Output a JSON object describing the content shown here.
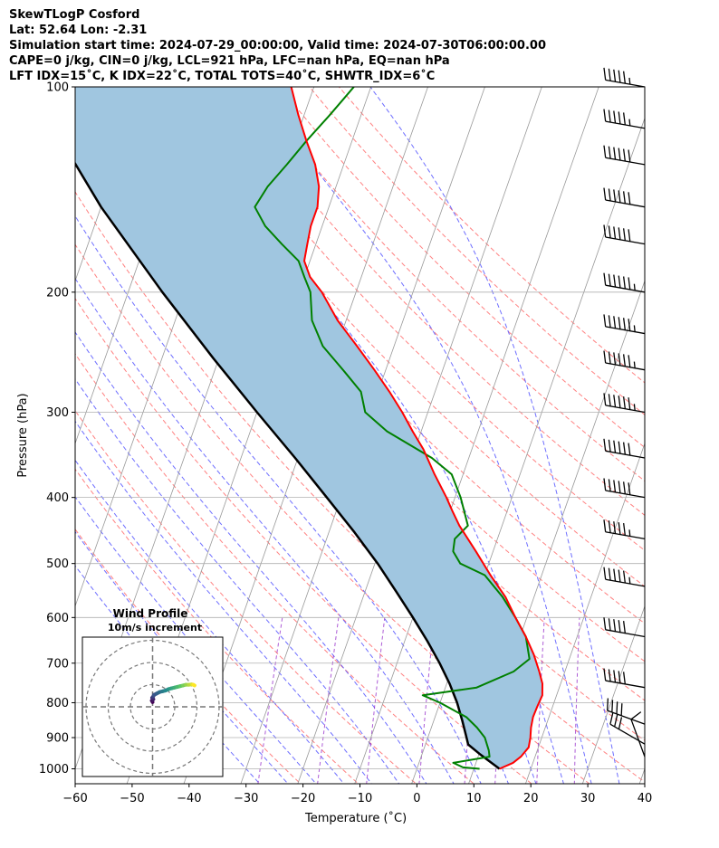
{
  "header": {
    "line1": "SkewTLogP Cosford",
    "line2": "Lat: 52.64   Lon: -2.31",
    "line3": "Simulation start time: 2024-07-29_00:00:00, Valid time: 2024-07-30T06:00:00.00",
    "line4": "CAPE=0 j/kg, CIN=0 j/kg, LCL=921 hPa, LFC=nan hPa, EQ=nan hPa",
    "line5": "LFT IDX=15˚C, K IDX=22˚C, TOTAL TOTS=40˚C, SHWTR_IDX=6˚C"
  },
  "chart_data": {
    "type": "line",
    "subtype": "skew-t log-p",
    "xlabel": "Temperature (˚C)",
    "ylabel": "Pressure (hPa)",
    "xlim": [
      -60,
      40
    ],
    "ylim": [
      1050,
      100
    ],
    "yscale": "log",
    "grid": true,
    "x_ticks": [
      "−60",
      "−50",
      "−40",
      "−30",
      "−20",
      "−10",
      "0",
      "10",
      "20",
      "30",
      "40"
    ],
    "y_ticks": [
      "100",
      "200",
      "300",
      "400",
      "500",
      "600",
      "700",
      "800",
      "900",
      "1000"
    ],
    "series": [
      {
        "role": "temperature",
        "color": "#ff0000",
        "points": [
          [
            1000,
            14.5
          ],
          [
            980,
            16.5
          ],
          [
            960,
            17.5
          ],
          [
            930,
            18.3
          ],
          [
            900,
            18
          ],
          [
            870,
            17.5
          ],
          [
            840,
            17.2
          ],
          [
            810,
            17.3
          ],
          [
            780,
            17.5
          ],
          [
            750,
            16.8
          ],
          [
            720,
            15.5
          ],
          [
            680,
            13.5
          ],
          [
            640,
            11
          ],
          [
            600,
            8
          ],
          [
            560,
            5
          ],
          [
            520,
            1
          ],
          [
            480,
            -3
          ],
          [
            440,
            -7.5
          ],
          [
            420,
            -9.5
          ],
          [
            400,
            -11.5
          ],
          [
            370,
            -15
          ],
          [
            340,
            -18.5
          ],
          [
            320,
            -21.5
          ],
          [
            300,
            -24.5
          ],
          [
            280,
            -28
          ],
          [
            260,
            -32
          ],
          [
            240,
            -36.5
          ],
          [
            220,
            -41.5
          ],
          [
            200,
            -46
          ],
          [
            190,
            -49
          ],
          [
            180,
            -51
          ],
          [
            170,
            -51.5
          ],
          [
            160,
            -52
          ],
          [
            150,
            -52
          ],
          [
            140,
            -53
          ],
          [
            130,
            -55
          ],
          [
            120,
            -58
          ],
          [
            110,
            -61
          ],
          [
            100,
            -64
          ]
        ]
      },
      {
        "role": "dewpoint",
        "color": "#008000",
        "points": [
          [
            1000,
            11
          ],
          [
            995,
            8
          ],
          [
            980,
            6
          ],
          [
            960,
            12
          ],
          [
            940,
            11.5
          ],
          [
            900,
            10
          ],
          [
            870,
            8
          ],
          [
            840,
            5.5
          ],
          [
            800,
            0
          ],
          [
            780,
            -3.5
          ],
          [
            760,
            5.5
          ],
          [
            720,
            11
          ],
          [
            690,
            13
          ],
          [
            640,
            11
          ],
          [
            600,
            8
          ],
          [
            560,
            4.5
          ],
          [
            520,
            0
          ],
          [
            500,
            -5
          ],
          [
            480,
            -7
          ],
          [
            460,
            -7.5
          ],
          [
            440,
            -6
          ],
          [
            400,
            -9
          ],
          [
            370,
            -12
          ],
          [
            350,
            -16.5
          ],
          [
            320,
            -26
          ],
          [
            300,
            -31
          ],
          [
            280,
            -33
          ],
          [
            260,
            -37.5
          ],
          [
            240,
            -42.5
          ],
          [
            220,
            -46
          ],
          [
            200,
            -48
          ],
          [
            190,
            -50
          ],
          [
            180,
            -52
          ],
          [
            170,
            -56
          ],
          [
            160,
            -60
          ],
          [
            150,
            -63
          ],
          [
            140,
            -62
          ],
          [
            130,
            -60
          ],
          [
            120,
            -58
          ],
          [
            110,
            -55.5
          ],
          [
            100,
            -53
          ]
        ]
      },
      {
        "role": "parcel",
        "color": "#000000",
        "points": [
          [
            1000,
            14.5
          ],
          [
            950,
            10
          ],
          [
            921,
            7.5
          ],
          [
            900,
            6.8
          ],
          [
            850,
            5
          ],
          [
            800,
            3
          ],
          [
            750,
            0.5
          ],
          [
            700,
            -2.5
          ],
          [
            650,
            -6
          ],
          [
            600,
            -10
          ],
          [
            550,
            -14.5
          ],
          [
            500,
            -19.5
          ],
          [
            450,
            -25.5
          ],
          [
            400,
            -32.5
          ],
          [
            350,
            -40.5
          ],
          [
            300,
            -50
          ],
          [
            250,
            -61
          ],
          [
            200,
            -74
          ],
          [
            150,
            -90
          ],
          [
            120,
            -101
          ],
          [
            100,
            -110
          ]
        ]
      }
    ],
    "shaded_region": {
      "between": [
        "parcel",
        "temperature"
      ],
      "color": "#a0c6e0"
    },
    "background_lines": {
      "isotherms": {
        "color": "#999999",
        "values": [
          -100,
          -90,
          -80,
          -70,
          -60,
          -50,
          -40,
          -30,
          -20,
          -10,
          0,
          10,
          20,
          30,
          40
        ]
      },
      "dry_adiabats": {
        "color": "#ff6b6b",
        "theta": [
          250,
          260,
          270,
          280,
          290,
          300,
          310,
          320,
          330,
          340,
          350,
          360,
          370,
          380,
          390,
          400,
          410,
          420
        ]
      },
      "moist_adiabats": {
        "color": "#5555ff",
        "surface_temps": [
          -30,
          -25,
          -20,
          -15,
          -10,
          -5,
          0,
          5,
          10,
          15,
          20,
          25,
          30,
          35
        ]
      },
      "mixing_ratio": {
        "color": "#9933cc"
      }
    },
    "wind_barbs": {
      "color": "#000000",
      "barbs": [
        {
          "p": 100,
          "speed_kt": 55,
          "dir": 280
        },
        {
          "p": 115,
          "speed_kt": 55,
          "dir": 280
        },
        {
          "p": 130,
          "speed_kt": 60,
          "dir": 280
        },
        {
          "p": 150,
          "speed_kt": 60,
          "dir": 280
        },
        {
          "p": 170,
          "speed_kt": 60,
          "dir": 280
        },
        {
          "p": 200,
          "speed_kt": 65,
          "dir": 280
        },
        {
          "p": 230,
          "speed_kt": 65,
          "dir": 280
        },
        {
          "p": 260,
          "speed_kt": 65,
          "dir": 280
        },
        {
          "p": 300,
          "speed_kt": 65,
          "dir": 280
        },
        {
          "p": 350,
          "speed_kt": 60,
          "dir": 280
        },
        {
          "p": 400,
          "speed_kt": 60,
          "dir": 280
        },
        {
          "p": 460,
          "speed_kt": 55,
          "dir": 280
        },
        {
          "p": 540,
          "speed_kt": 55,
          "dir": 280
        },
        {
          "p": 640,
          "speed_kt": 50,
          "dir": 280
        },
        {
          "p": 760,
          "speed_kt": 50,
          "dir": 280
        },
        {
          "p": 860,
          "speed_kt": 40,
          "dir": 290
        },
        {
          "p": 920,
          "speed_kt": 30,
          "dir": 300
        },
        {
          "p": 960,
          "speed_kt": 10,
          "dir": 340
        }
      ]
    },
    "hodograph": {
      "title_line1": "Wind Profile",
      "title_line2": "10m/s increment",
      "ring_speeds": [
        10,
        20,
        30
      ],
      "trace_uv": [
        [
          0,
          -3
        ],
        [
          -0.5,
          -2
        ],
        [
          0.5,
          -1
        ],
        [
          -0.3,
          0
        ],
        [
          0.5,
          1
        ],
        [
          1,
          2
        ],
        [
          3,
          3
        ],
        [
          5,
          4
        ],
        [
          7,
          4.5
        ],
        [
          9,
          5
        ],
        [
          11,
          6
        ],
        [
          13,
          6.5
        ],
        [
          15,
          7
        ],
        [
          17,
          7.5
        ],
        [
          19,
          8
        ],
        [
          21,
          8.5
        ],
        [
          23,
          9
        ],
        [
          25,
          9
        ],
        [
          27,
          9.2
        ],
        [
          28,
          9
        ],
        [
          29,
          8.5
        ]
      ]
    }
  }
}
